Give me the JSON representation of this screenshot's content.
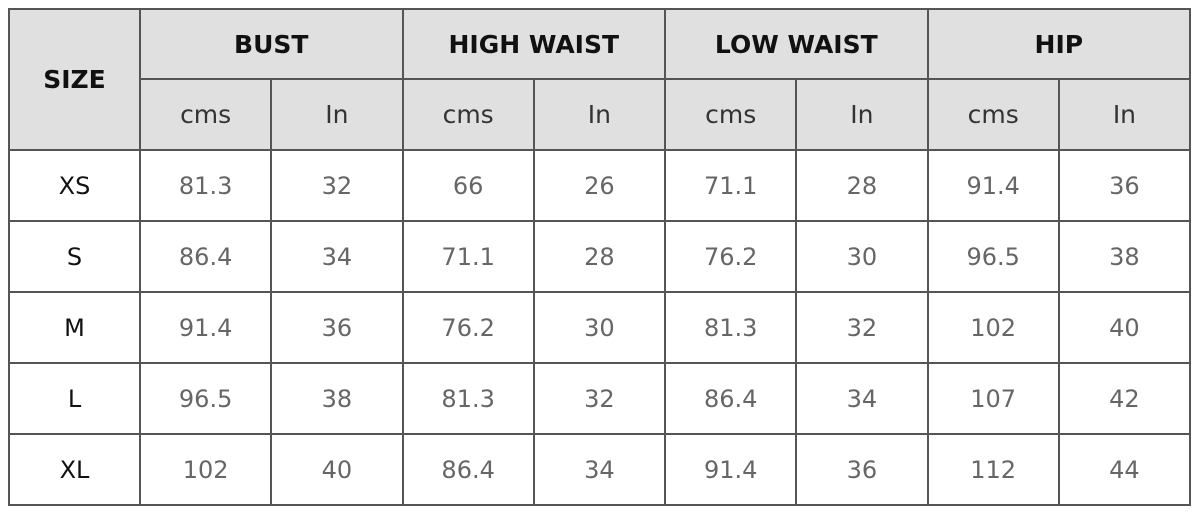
{
  "table": {
    "header": {
      "size": "SIZE",
      "groups": [
        "BUST",
        "HIGH WAIST",
        "LOW WAIST",
        "HIP"
      ],
      "units": [
        "cms",
        "In",
        "cms",
        "In",
        "cms",
        "In",
        "cms",
        "In"
      ]
    },
    "rows": [
      [
        "XS",
        "81.3",
        "32",
        "66",
        "26",
        "71.1",
        "28",
        "91.4",
        "36"
      ],
      [
        "S",
        "86.4",
        "34",
        "71.1",
        "28",
        "76.2",
        "30",
        "96.5",
        "38"
      ],
      [
        "M",
        "91.4",
        "36",
        "76.2",
        "30",
        "81.3",
        "32",
        "102",
        "40"
      ],
      [
        "L",
        "96.5",
        "38",
        "81.3",
        "32",
        "86.4",
        "34",
        "107",
        "42"
      ],
      [
        "XL",
        "102",
        "40",
        "86.4",
        "34",
        "91.4",
        "36",
        "112",
        "44"
      ]
    ]
  }
}
